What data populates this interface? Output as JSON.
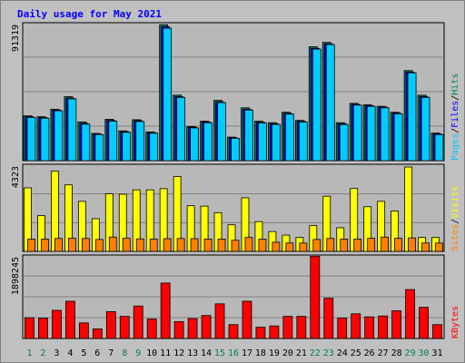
{
  "chart_data": [
    {
      "type": "bar",
      "title": "Daily usage for May 2021",
      "categories": [
        "1",
        "2",
        "3",
        "4",
        "5",
        "6",
        "7",
        "8",
        "9",
        "10",
        "11",
        "12",
        "13",
        "14",
        "15",
        "16",
        "17",
        "18",
        "19",
        "20",
        "21",
        "22",
        "23",
        "24",
        "25",
        "26",
        "27",
        "28",
        "29",
        "30",
        "31"
      ],
      "weekend_days": [
        "1",
        "2",
        "8",
        "9",
        "15",
        "16",
        "22",
        "23",
        "29",
        "30"
      ],
      "panels": [
        {
          "id": "hits-files-pages",
          "ymax_label": "91319",
          "ymax": 91319,
          "legend": [
            "Pages",
            "/",
            "Files",
            "/",
            "Hits"
          ],
          "series": [
            {
              "name": "Hits",
              "color": "#00805c",
              "values": [
                30100,
                29500,
                34500,
                43000,
                26000,
                18300,
                27800,
                20000,
                27500,
                19300,
                91319,
                44000,
                23000,
                26500,
                40500,
                15800,
                35500,
                26500,
                25500,
                32500,
                27000,
                76500,
                79500,
                25500,
                38500,
                37500,
                36500,
                32500,
                60500,
                44000,
                18500
              ]
            },
            {
              "name": "Files",
              "color": "#0000ff",
              "values": [
                29500,
                29000,
                34000,
                42000,
                25000,
                17800,
                27000,
                19500,
                26800,
                18800,
                90000,
                43000,
                22500,
                26000,
                39500,
                15300,
                34500,
                25800,
                24800,
                31800,
                26500,
                75500,
                78500,
                24800,
                37800,
                37000,
                36000,
                32000,
                59500,
                43000,
                18000
              ]
            },
            {
              "name": "Pages",
              "color": "#00ccff",
              "values": [
                29000,
                28500,
                33500,
                41500,
                24500,
                17500,
                26500,
                19000,
                26300,
                18400,
                89000,
                42500,
                22000,
                25500,
                39000,
                15000,
                34000,
                25300,
                24300,
                31300,
                26000,
                75000,
                78000,
                24300,
                37300,
                36500,
                35500,
                31500,
                59000,
                42500,
                17500
              ]
            }
          ]
        },
        {
          "id": "visits-sites",
          "ymax_label": "4323",
          "ymax": 4323,
          "legend": [
            "Sites",
            "/",
            "Visits"
          ],
          "series": [
            {
              "name": "Visits",
              "color": "#ffff00",
              "values": [
                3200,
                1800,
                4050,
                3350,
                2520,
                1650,
                2900,
                2880,
                3100,
                3100,
                3160,
                3770,
                2300,
                2280,
                1950,
                1340,
                2700,
                1500,
                1000,
                820,
                700,
                1300,
                2780,
                1190,
                3170,
                2250,
                2520,
                2030,
                4250,
                700,
                700
              ]
            },
            {
              "name": "Sites",
              "color": "#ff8000",
              "values": [
                620,
                620,
                650,
                660,
                650,
                600,
                720,
                660,
                630,
                620,
                640,
                650,
                640,
                620,
                620,
                560,
                700,
                620,
                460,
                420,
                420,
                600,
                650,
                620,
                620,
                660,
                720,
                660,
                680,
                420,
                420
              ]
            }
          ]
        },
        {
          "id": "kbytes",
          "ymax_label": "1898245",
          "ymax": 1898245,
          "legend": [
            "KBytes"
          ],
          "series": [
            {
              "name": "KBytes",
              "color": "#ff0000",
              "values": [
                480000,
                470000,
                650000,
                860000,
                360000,
                220000,
                620000,
                510000,
                750000,
                450000,
                1280000,
                390000,
                460000,
                530000,
                800000,
                320000,
                860000,
                260000,
                290000,
                510000,
                510000,
                1898245,
                930000,
                470000,
                570000,
                500000,
                520000,
                640000,
                1130000,
                720000,
                320000
              ]
            }
          ]
        }
      ]
    }
  ]
}
